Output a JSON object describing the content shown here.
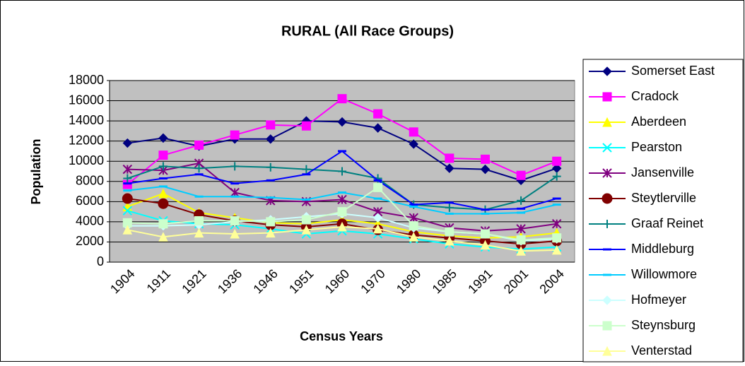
{
  "chart_data": {
    "type": "line",
    "title": "RURAL (All Race Groups)",
    "x_label": "Census Years",
    "y_label": "Population",
    "categories": [
      "1904",
      "1911",
      "1921",
      "1936",
      "1946",
      "1951",
      "1960",
      "1970",
      "1980",
      "1985",
      "1991",
      "2001",
      "2004"
    ],
    "ylim": [
      0,
      18000
    ],
    "yticks": [
      0,
      2000,
      4000,
      6000,
      8000,
      10000,
      12000,
      14000,
      16000,
      18000
    ],
    "grid": true,
    "legend": "right",
    "series": [
      {
        "name": "Somerset East",
        "color": "#000080",
        "marker": "diamond",
        "values": [
          11800,
          12300,
          11500,
          12200,
          12200,
          14000,
          13900,
          13300,
          11700,
          9300,
          9200,
          8100,
          9300
        ]
      },
      {
        "name": "Cradock",
        "color": "#ff00ff",
        "marker": "square",
        "values": [
          7700,
          10600,
          11600,
          12600,
          13600,
          13500,
          16200,
          14700,
          12900,
          10300,
          10200,
          8600,
          10000
        ]
      },
      {
        "name": "Aberdeen",
        "color": "#ffff00",
        "marker": "triangle",
        "values": [
          5500,
          6800,
          4900,
          4400,
          3900,
          3800,
          4200,
          3800,
          3000,
          2600,
          2400,
          2500,
          2900
        ]
      },
      {
        "name": "Pearston",
        "color": "#00ffff",
        "marker": "x",
        "values": [
          5100,
          4100,
          3800,
          3700,
          3300,
          2800,
          3100,
          2800,
          2300,
          1800,
          1500,
          1300,
          1500
        ]
      },
      {
        "name": "Jansenville",
        "color": "#800080",
        "marker": "star",
        "values": [
          9200,
          9100,
          9800,
          6900,
          6100,
          6000,
          6200,
          5000,
          4400,
          3400,
          3100,
          3300,
          3800
        ]
      },
      {
        "name": "Steytlerville",
        "color": "#800000",
        "marker": "circle",
        "values": [
          6300,
          5800,
          4700,
          4100,
          3700,
          3500,
          3800,
          3200,
          2700,
          2400,
          2100,
          1800,
          2100
        ]
      },
      {
        "name": "Graaf Reinet",
        "color": "#008080",
        "marker": "plus",
        "values": [
          8300,
          9500,
          9300,
          9500,
          9400,
          9200,
          9000,
          8300,
          5700,
          5400,
          5200,
          6100,
          8500
        ]
      },
      {
        "name": "Middleburg",
        "color": "#0000ff",
        "marker": "dash",
        "values": [
          7800,
          8300,
          8700,
          7800,
          8100,
          8700,
          11000,
          8100,
          5700,
          5900,
          5200,
          5300,
          6300
        ]
      },
      {
        "name": "Willowmore",
        "color": "#00ccff",
        "marker": "dash",
        "values": [
          7100,
          7500,
          6500,
          6500,
          6400,
          6200,
          6900,
          6300,
          5500,
          4800,
          4800,
          4900,
          5700
        ]
      },
      {
        "name": "Hofmeyer",
        "color": "#ccffff",
        "marker": "diamond",
        "values": [
          3600,
          3600,
          3700,
          4000,
          4200,
          4500,
          4800,
          4400,
          3400,
          3000,
          2800,
          2100,
          2300
        ]
      },
      {
        "name": "Steynsburg",
        "color": "#ccffcc",
        "marker": "square",
        "values": [
          3900,
          3800,
          4100,
          4100,
          4000,
          4200,
          5000,
          7400,
          3600,
          3000,
          2800,
          2200,
          2400
        ]
      },
      {
        "name": "Venterstad",
        "color": "#ffff99",
        "marker": "triangle",
        "values": [
          3200,
          2500,
          2900,
          2800,
          2900,
          3200,
          3500,
          3300,
          2500,
          2100,
          1700,
          1100,
          1200
        ]
      }
    ]
  }
}
